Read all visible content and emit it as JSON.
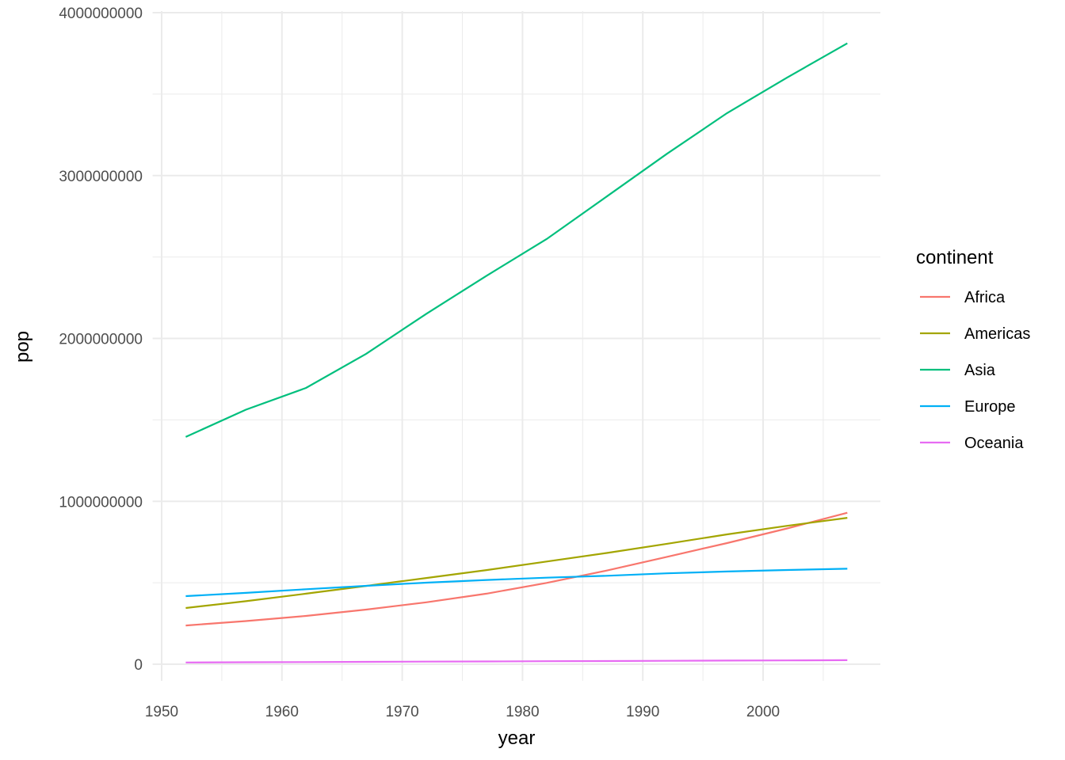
{
  "chart_data": {
    "type": "line",
    "title": "",
    "xlabel": "year",
    "ylabel": "pop",
    "x": [
      1952,
      1957,
      1962,
      1967,
      1972,
      1977,
      1982,
      1987,
      1992,
      1997,
      2002,
      2007
    ],
    "xlim": [
      1949.25,
      2009.75
    ],
    "ylim": [
      -190000000,
      4000000000
    ],
    "xticks": [
      1950,
      1960,
      1970,
      1980,
      1990,
      2000
    ],
    "xtick_labels": [
      "1950",
      "1960",
      "1970",
      "1980",
      "1990",
      "2000"
    ],
    "yticks": [
      0,
      1000000000,
      2000000000,
      3000000000,
      4000000000
    ],
    "ytick_labels": [
      "0",
      "1000000000",
      "2000000000",
      "3000000000",
      "4000000000"
    ],
    "grid": true,
    "legend": {
      "title": "continent",
      "placement": "right"
    },
    "series": [
      {
        "name": "Africa",
        "color": "#F8766D",
        "values": [
          237640501,
          264837738,
          296516865,
          335289489,
          379879541,
          433061021,
          499348587,
          574834110,
          659081517,
          743832984,
          833723916,
          929539692
        ]
      },
      {
        "name": "Americas",
        "color": "#A3A500",
        "values": [
          345152446,
          386953916,
          433270254,
          480746623,
          529384210,
          578067699,
          630290920,
          682753971,
          739274104,
          796900410,
          849772762,
          898871184
        ]
      },
      {
        "name": "Asia",
        "color": "#00BF7D",
        "values": [
          1395357352,
          1562780599,
          1696357182,
          1905662900,
          2150972248,
          2384513556,
          2610135582,
          2871220762,
          3133292191,
          3383285500,
          3601802203,
          3811953827
        ]
      },
      {
        "name": "Europe",
        "color": "#00B0F6",
        "values": [
          418120846,
          437890351,
          460355155,
          481178958,
          500635059,
          517164531,
          531266901,
          543094160,
          558142797,
          568944148,
          578223869,
          586098529
        ]
      },
      {
        "name": "Oceania",
        "color": "#E76BF3",
        "values": [
          10686006,
          11941976,
          13283518,
          14600414,
          16106425,
          17239000,
          18394850,
          19574415,
          20919651,
          22241430,
          23454829,
          24549947
        ]
      }
    ]
  }
}
